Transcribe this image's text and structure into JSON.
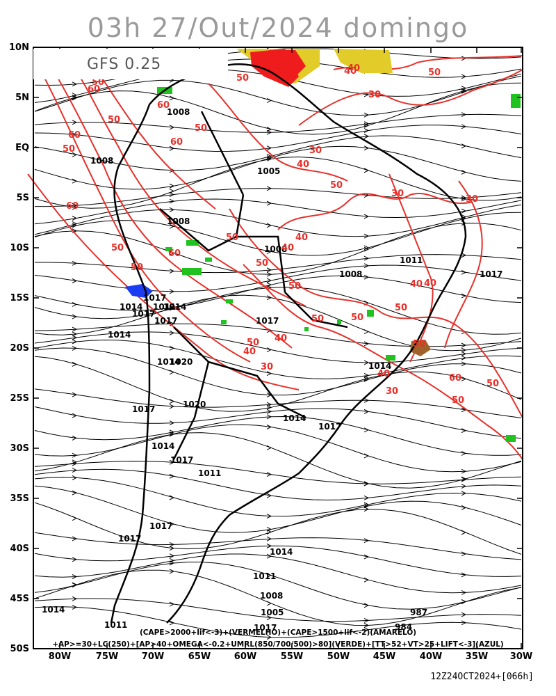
{
  "title": "03h 27/Out/2024 domingo",
  "model": "GFS 0.25",
  "lat_labels": [
    "10N",
    "5N",
    "EQ",
    "5S",
    "10S",
    "15S",
    "20S",
    "25S",
    "30S",
    "35S",
    "40S",
    "45S",
    "50S"
  ],
  "lon_labels": [
    "80W",
    "75W",
    "70W",
    "65W",
    "60W",
    "55W",
    "50W",
    "45W",
    "40W",
    "35W",
    "30W"
  ],
  "legend_line1": "(CAPE>2000+lif<-3)+(VERMELHO)+(CAPE>1500+lif<-2)(AMARELO)",
  "legend_line2": "+AP>=30+LC(250)+[AP>40+OMEGA<-0.2+UMRL(850/700/500)>80](VERDE)+[TT>52+VT>25+LIFT<-3](AZUL)",
  "run_info": "12Z24OCT2024+[066h]",
  "colors": {
    "thickness": "#e8302a",
    "cape_red": "#ee1c1c",
    "cape_yellow": "#e2cc2a",
    "green": "#1fc21f",
    "blue": "#1b3cf0",
    "brown": "#a0622a"
  },
  "isobar_labels": [
    "1008",
    "1008",
    "1005",
    "1008",
    "1008",
    "1011",
    "1008",
    "1017",
    "1014",
    "1011",
    "1014",
    "1017",
    "1014",
    "1017",
    "1017",
    "1014",
    "1020",
    "1020",
    "1017",
    "1014",
    "1017",
    "1014",
    "1017",
    "1011",
    "1017",
    "1017",
    "1014",
    "1011",
    "1008",
    "1005",
    "1017",
    "1014",
    "1011",
    "987",
    "984",
    "1017",
    "1014"
  ],
  "thickness_labels": [
    "50",
    "60",
    "60",
    "50",
    "60",
    "50",
    "30",
    "40",
    "50",
    "60",
    "50",
    "50",
    "40",
    "30",
    "50",
    "40",
    "40",
    "30",
    "60",
    "50",
    "50",
    "40",
    "50",
    "30",
    "40",
    "50",
    "40",
    "50",
    "50",
    "40",
    "30",
    "50",
    "60",
    "40",
    "50",
    "30",
    "50",
    "50",
    "60",
    "50",
    "40",
    "50"
  ]
}
